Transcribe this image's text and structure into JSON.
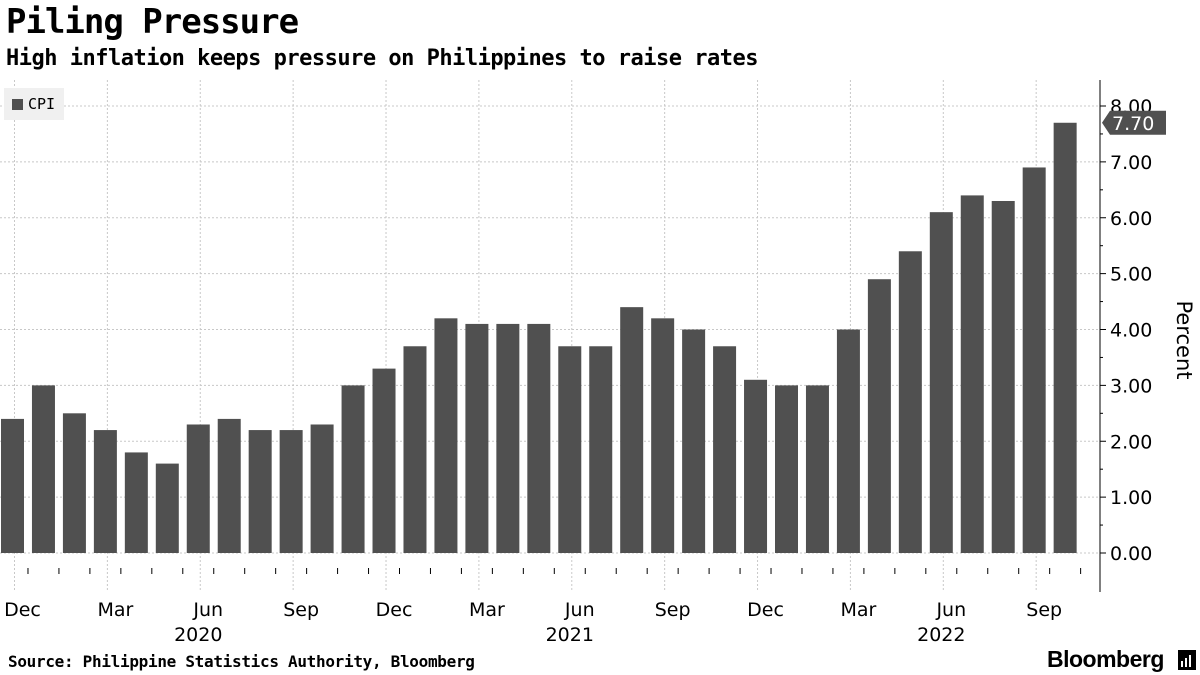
{
  "header": {
    "title": "Piling Pressure",
    "subtitle": "High inflation keeps pressure on Philippines to raise rates"
  },
  "footer": {
    "source": "Source: Philippine Statistics Authority, Bloomberg",
    "brand": "Bloomberg"
  },
  "colors": {
    "bar": "#505050",
    "grid": "#c8c8c8",
    "callout": "#505050"
  },
  "chart_data": {
    "type": "bar",
    "categories": [
      "Dec 2019",
      "Jan 2020",
      "Feb 2020",
      "Mar 2020",
      "Apr 2020",
      "May 2020",
      "Jun 2020",
      "Jul 2020",
      "Aug 2020",
      "Sep 2020",
      "Oct 2020",
      "Nov 2020",
      "Dec 2020",
      "Jan 2021",
      "Feb 2021",
      "Mar 2021",
      "Apr 2021",
      "May 2021",
      "Jun 2021",
      "Jul 2021",
      "Aug 2021",
      "Sep 2021",
      "Oct 2021",
      "Nov 2021",
      "Dec 2021",
      "Jan 2022",
      "Feb 2022",
      "Mar 2022",
      "Apr 2022",
      "May 2022",
      "Jun 2022",
      "Jul 2022",
      "Aug 2022",
      "Sep 2022",
      "Oct 2022"
    ],
    "series": [
      {
        "name": "CPI",
        "values": [
          2.4,
          3.0,
          2.5,
          2.2,
          1.8,
          1.6,
          2.3,
          2.4,
          2.2,
          2.2,
          2.3,
          3.0,
          3.3,
          3.7,
          4.2,
          4.1,
          4.1,
          4.1,
          3.7,
          3.7,
          4.4,
          4.2,
          4.0,
          3.7,
          3.1,
          3.0,
          3.0,
          4.0,
          4.9,
          5.4,
          6.1,
          6.4,
          6.3,
          6.9,
          7.7
        ]
      }
    ],
    "ylabel": "Percent",
    "ylim": [
      0,
      8
    ],
    "yticks": [
      {
        "value": 0,
        "label": "0.00"
      },
      {
        "value": 1,
        "label": "1.00"
      },
      {
        "value": 2,
        "label": "2.00"
      },
      {
        "value": 3,
        "label": "3.00"
      },
      {
        "value": 4,
        "label": "4.00"
      },
      {
        "value": 5,
        "label": "5.00"
      },
      {
        "value": 6,
        "label": "6.00"
      },
      {
        "value": 7,
        "label": "7.00"
      },
      {
        "value": 8,
        "label": "8.00"
      }
    ],
    "xticks": [
      {
        "index": 0,
        "label": "Dec"
      },
      {
        "index": 3,
        "label": "Mar"
      },
      {
        "index": 6,
        "label": "Jun"
      },
      {
        "index": 9,
        "label": "Sep"
      },
      {
        "index": 12,
        "label": "Dec"
      },
      {
        "index": 15,
        "label": "Mar"
      },
      {
        "index": 18,
        "label": "Jun"
      },
      {
        "index": 21,
        "label": "Sep"
      },
      {
        "index": 24,
        "label": "Dec"
      },
      {
        "index": 27,
        "label": "Mar"
      },
      {
        "index": 30,
        "label": "Jun"
      },
      {
        "index": 33,
        "label": "Sep"
      }
    ],
    "year_labels": [
      {
        "index": 6,
        "label": "2020"
      },
      {
        "index": 18,
        "label": "2021"
      },
      {
        "index": 30,
        "label": "2022"
      }
    ],
    "last_value_label": "7.70",
    "grid": true,
    "legend": "top-left",
    "y_axis_position": "right"
  }
}
